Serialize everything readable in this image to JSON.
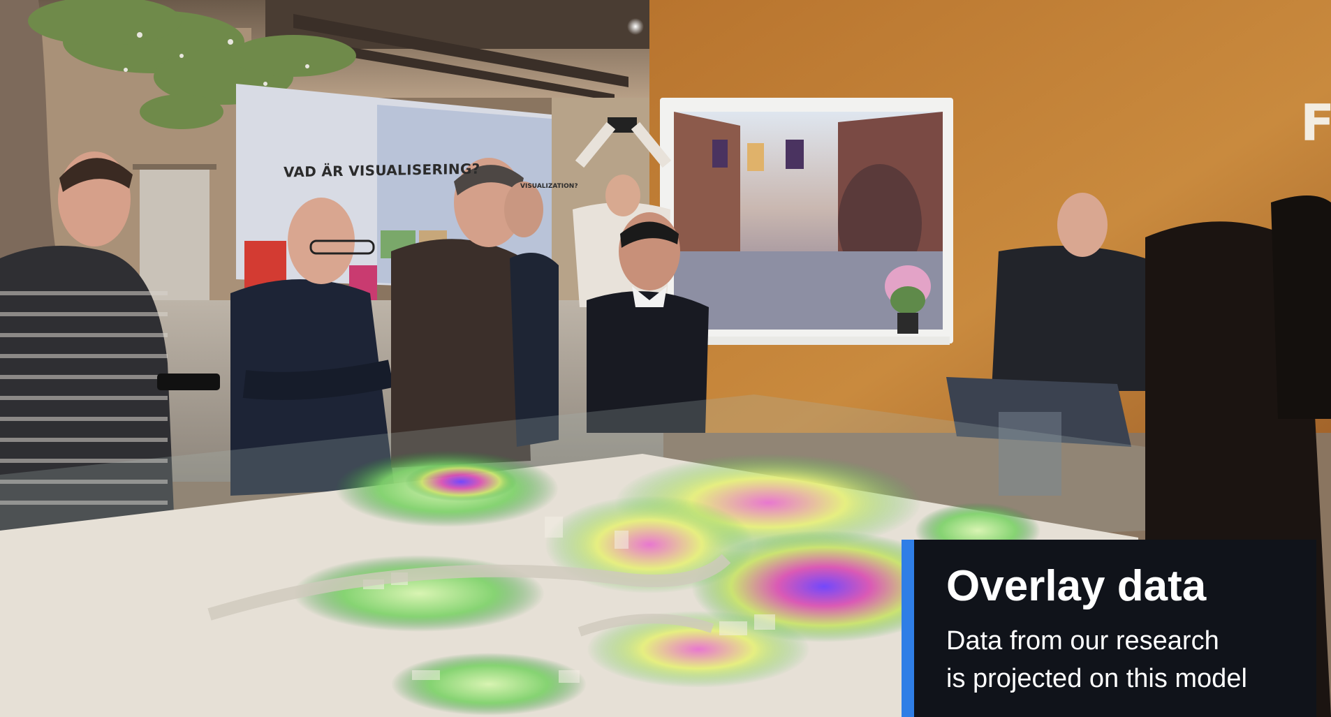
{
  "scene": {
    "wall_heading": "VAD ÄR VISUALISERING?",
    "wall_heading_en": "VISUALIZATION?",
    "wall_partial_letter": "F"
  },
  "caption": {
    "title": "Overlay data",
    "line1": "Data from our research",
    "line2": "is projected on this model",
    "accent_color": "#2f7ee6",
    "background_color": "#10131a"
  }
}
